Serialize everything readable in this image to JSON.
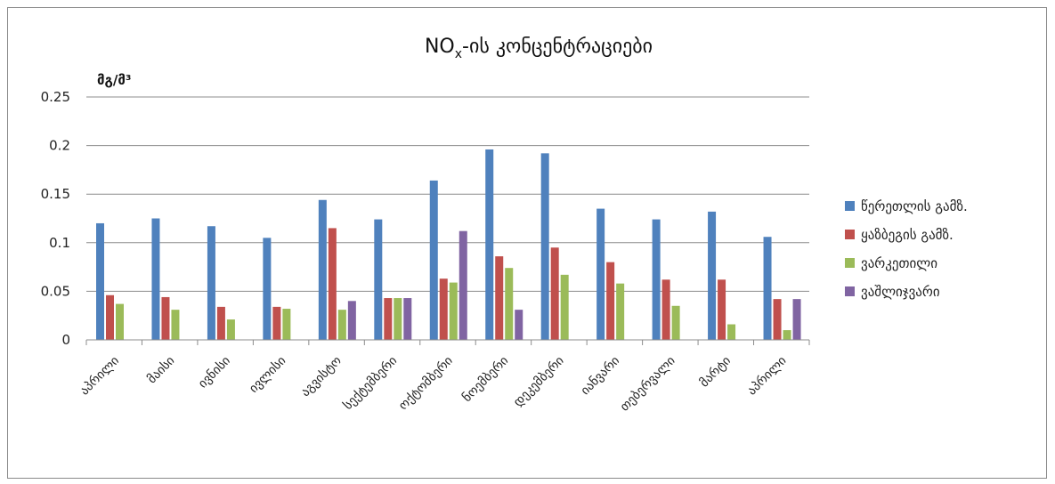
{
  "chart_data": {
    "type": "bar",
    "title_main": "NO",
    "title_sub": "x",
    "title_rest": "-ის კონცენტრაციები",
    "ylabel": "მგ/მ³",
    "xlabel": "",
    "ylim": [
      0,
      0.25
    ],
    "yticks": [
      "0.25",
      "0.2",
      "0.15",
      "0.1",
      "0.05",
      "0"
    ],
    "grid": true,
    "legend_position": "right",
    "categories": [
      "აპრილი",
      "მაისი",
      "ივნისი",
      "ივლისი",
      "აგვისტო",
      "სექტემბერი",
      "ოქტომბერი",
      "ნოემბერი",
      "დეკემბერი",
      "იანვარი",
      "თებერვალი",
      "მარტი",
      "აპრილი"
    ],
    "series": [
      {
        "name": "წერეთლის გამზ.",
        "color": "#4f81bd",
        "values": [
          0.12,
          0.125,
          0.117,
          0.105,
          0.144,
          0.124,
          0.164,
          0.196,
          0.192,
          0.135,
          0.124,
          0.132,
          0.106
        ]
      },
      {
        "name": "ყაზბეგის გამზ.",
        "color": "#c0504d",
        "values": [
          0.046,
          0.044,
          0.034,
          0.034,
          0.115,
          0.043,
          0.063,
          0.086,
          0.095,
          0.08,
          0.062,
          0.062,
          0.042
        ]
      },
      {
        "name": "ვარკეთილი",
        "color": "#9bbb59",
        "values": [
          0.037,
          0.031,
          0.021,
          0.032,
          0.031,
          0.043,
          0.059,
          0.074,
          0.067,
          0.058,
          0.035,
          0.016,
          0.01
        ]
      },
      {
        "name": "ვაშლიჯვარი",
        "color": "#8064a2",
        "values": [
          null,
          null,
          null,
          null,
          0.04,
          0.043,
          0.112,
          0.031,
          null,
          null,
          null,
          null,
          0.042
        ]
      }
    ]
  }
}
